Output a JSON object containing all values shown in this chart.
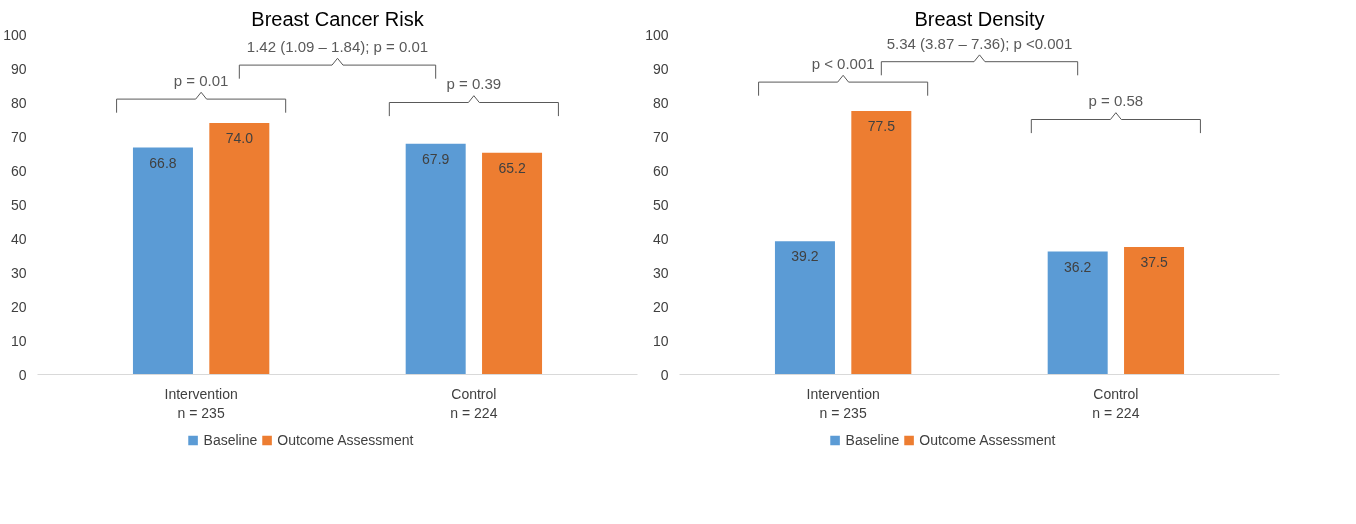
{
  "chart_data": [
    {
      "type": "bar",
      "title": "Breast Cancer Risk",
      "categories": [
        "Intervention\nn = 235",
        "Control\nn = 224"
      ],
      "series": [
        {
          "name": "Baseline",
          "color": "#5b9bd5",
          "values": [
            66.8,
            67.9
          ],
          "value_labels": [
            "66.8",
            "67.9"
          ]
        },
        {
          "name": "Outcome Assessment",
          "color": "#ed7d31",
          "values": [
            74.0,
            65.2
          ],
          "value_labels": [
            "74.0",
            "65.2"
          ]
        }
      ],
      "ylim": [
        0,
        100
      ],
      "yticks": [
        0,
        10,
        20,
        30,
        40,
        50,
        60,
        70,
        80,
        90,
        100
      ],
      "grid": false,
      "legend": "bottom",
      "annotations": [
        "p = 0.01",
        "1.42 (1.09 – 1.84); p = 0.01",
        "p = 0.39"
      ]
    },
    {
      "type": "bar",
      "title": "Breast Density",
      "categories": [
        "Intervention\nn = 235",
        "Control\nn = 224"
      ],
      "series": [
        {
          "name": "Baseline",
          "color": "#5b9bd5",
          "values": [
            39.2,
            36.2
          ],
          "value_labels": [
            "39.2",
            "36.2"
          ]
        },
        {
          "name": "Outcome Assessment",
          "color": "#ed7d31",
          "values": [
            77.5,
            37.5
          ],
          "value_labels": [
            "77.5",
            "37.5"
          ]
        }
      ],
      "ylim": [
        0,
        100
      ],
      "yticks": [
        0,
        10,
        20,
        30,
        40,
        50,
        60,
        70,
        80,
        90,
        100
      ],
      "grid": false,
      "legend": "bottom",
      "annotations": [
        "p < 0.001",
        "5.34 (3.87 – 7.36); p <0.001",
        "p = 0.58"
      ]
    }
  ]
}
